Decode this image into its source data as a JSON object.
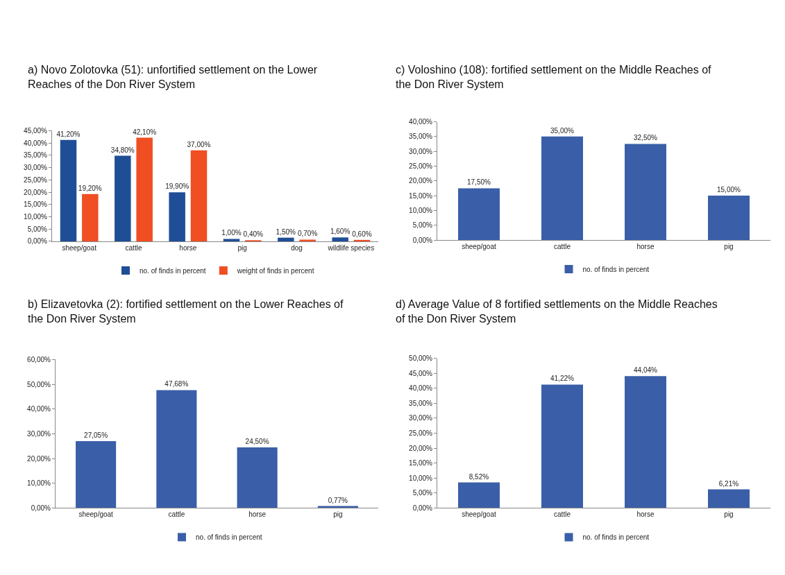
{
  "chart_data": [
    {
      "type": "bar",
      "title": "a) Novo Zolotovka (51): unfortified settlement on the Lower Reaches of the Don River System",
      "categories": [
        "sheep/goat",
        "cattle",
        "horse",
        "pig",
        "dog",
        "wildlife species"
      ],
      "series": [
        {
          "name": "no. of finds in percent",
          "color": "#1f4e96",
          "values": [
            41.2,
            34.8,
            19.9,
            1.0,
            1.5,
            1.6
          ],
          "value_labels": [
            "41,20%",
            "34,80%",
            "19,90%",
            "1,00%",
            "1,50%",
            "1,60%"
          ]
        },
        {
          "name": "weight of finds in percent",
          "color": "#f04e23",
          "values": [
            19.2,
            42.1,
            37.0,
            0.4,
            0.7,
            0.6
          ],
          "value_labels": [
            "19,20%",
            "42,10%",
            "37,00%",
            "0,40%",
            "0,70%",
            "0,60%"
          ]
        }
      ],
      "ylim": [
        0,
        45
      ],
      "yticks": [
        {
          "value": 0,
          "label": "0,00%"
        },
        {
          "value": 5,
          "label": "5,00%"
        },
        {
          "value": 10,
          "label": "10,00%"
        },
        {
          "value": 15,
          "label": "15,00%"
        },
        {
          "value": 20,
          "label": "20,00%"
        },
        {
          "value": 25,
          "label": "25,00%"
        },
        {
          "value": 30,
          "label": "30,00%"
        },
        {
          "value": 35,
          "label": "35,00%"
        },
        {
          "value": 40,
          "label": "40,00%"
        },
        {
          "value": 45,
          "label": "45,00%"
        }
      ],
      "legend": "bottom",
      "grid": false
    },
    {
      "type": "bar",
      "title": "c) Voloshino (108): fortified settlement on the Middle Reaches of the Don River System",
      "categories": [
        "sheep/goat",
        "cattle",
        "horse",
        "pig"
      ],
      "series": [
        {
          "name": "no. of finds in percent",
          "color": "#3a5fa8",
          "values": [
            17.5,
            35.0,
            32.5,
            15.0
          ],
          "value_labels": [
            "17,50%",
            "35,00%",
            "32,50%",
            "15,00%"
          ]
        }
      ],
      "ylim": [
        0,
        40
      ],
      "yticks": [
        {
          "value": 0,
          "label": "0,00%"
        },
        {
          "value": 5,
          "label": "5,00%"
        },
        {
          "value": 10,
          "label": "10,00%"
        },
        {
          "value": 15,
          "label": "15,00%"
        },
        {
          "value": 20,
          "label": "20,00%"
        },
        {
          "value": 25,
          "label": "25,00%"
        },
        {
          "value": 30,
          "label": "30,00%"
        },
        {
          "value": 35,
          "label": "35,00%"
        },
        {
          "value": 40,
          "label": "40,00%"
        }
      ],
      "legend": "bottom",
      "grid": false
    },
    {
      "type": "bar",
      "title": "b) Elizavetovka (2): fortified settlement on the Lower Reaches of the Don River System",
      "categories": [
        "sheep/goat",
        "cattle",
        "horse",
        "pig"
      ],
      "series": [
        {
          "name": "no. of finds in percent",
          "color": "#3a5fa8",
          "values": [
            27.05,
            47.68,
            24.5,
            0.77
          ],
          "value_labels": [
            "27,05%",
            "47,68%",
            "24,50%",
            "0,77%"
          ]
        }
      ],
      "ylim": [
        0,
        60
      ],
      "yticks": [
        {
          "value": 0,
          "label": "0,00%"
        },
        {
          "value": 10,
          "label": "10,00%"
        },
        {
          "value": 20,
          "label": "20,00%"
        },
        {
          "value": 30,
          "label": "30,00%"
        },
        {
          "value": 40,
          "label": "40,00%"
        },
        {
          "value": 50,
          "label": "50,00%"
        },
        {
          "value": 60,
          "label": "60,00%"
        }
      ],
      "legend": "bottom",
      "grid": false
    },
    {
      "type": "bar",
      "title": "d) Average Value of 8 fortified settlements on the Middle Reaches of the Don River System",
      "categories": [
        "sheep/goat",
        "cattle",
        "horse",
        "pig"
      ],
      "series": [
        {
          "name": "no. of finds in percent",
          "color": "#3a5fa8",
          "values": [
            8.52,
            41.22,
            44.04,
            6.21
          ],
          "value_labels": [
            "8,52%",
            "41,22%",
            "44,04%",
            "6,21%"
          ]
        }
      ],
      "ylim": [
        0,
        50
      ],
      "yticks": [
        {
          "value": 0,
          "label": "0,00%"
        },
        {
          "value": 5,
          "label": "5,00%"
        },
        {
          "value": 10,
          "label": "10,00%"
        },
        {
          "value": 15,
          "label": "15,00%"
        },
        {
          "value": 20,
          "label": "20,00%"
        },
        {
          "value": 25,
          "label": "25,00%"
        },
        {
          "value": 30,
          "label": "30,00%"
        },
        {
          "value": 35,
          "label": "35,00%"
        },
        {
          "value": 40,
          "label": "40,00%"
        },
        {
          "value": 45,
          "label": "45,00%"
        },
        {
          "value": 50,
          "label": "50,00%"
        }
      ],
      "legend": "bottom",
      "grid": false
    }
  ]
}
